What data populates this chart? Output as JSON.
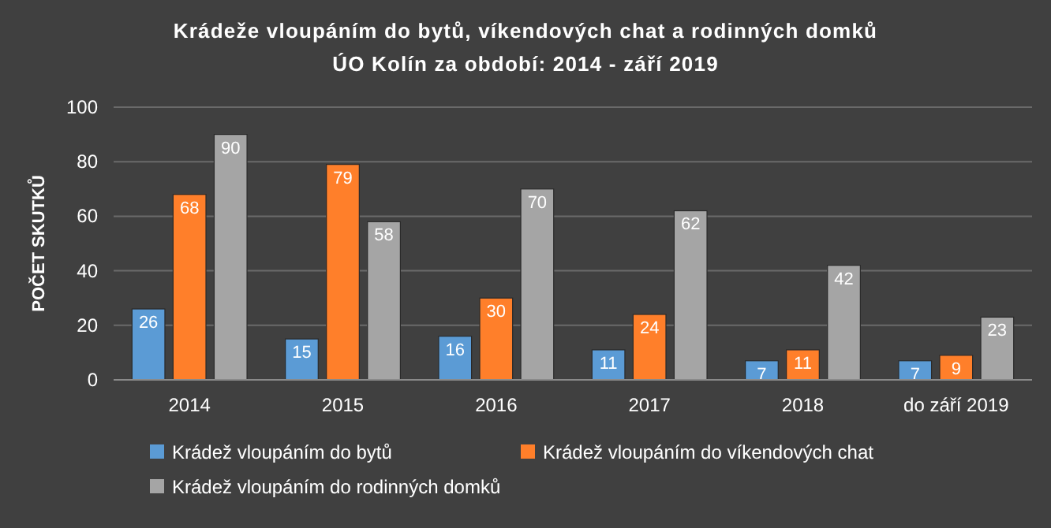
{
  "chart_data": {
    "type": "bar",
    "title": "Krádeže vloupáním do bytů, víkendových chat a rodinných domků",
    "subtitle": "ÚO Kolín za období: 2014 - září 2019",
    "ylabel": "POČET SKUTKŮ",
    "categories": [
      "2014",
      "2015",
      "2016",
      "2017",
      "2018",
      "do září 2019"
    ],
    "series": [
      {
        "name": "Krádež vloupáním do bytů",
        "color": "#5b9bd5",
        "values": [
          26,
          15,
          16,
          11,
          7,
          7
        ]
      },
      {
        "name": "Krádež vloupáním do víkendových chat",
        "color": "#ff7f2a",
        "values": [
          68,
          79,
          30,
          24,
          11,
          9
        ]
      },
      {
        "name": "Krádež vloupáním do rodinných domků",
        "color": "#a5a5a5",
        "values": [
          90,
          58,
          70,
          62,
          42,
          23
        ]
      }
    ],
    "ylim": [
      0,
      100
    ],
    "yticks": [
      0,
      20,
      40,
      60,
      80,
      100
    ],
    "grid": "y",
    "legend": "bottom",
    "data_labels": true
  }
}
